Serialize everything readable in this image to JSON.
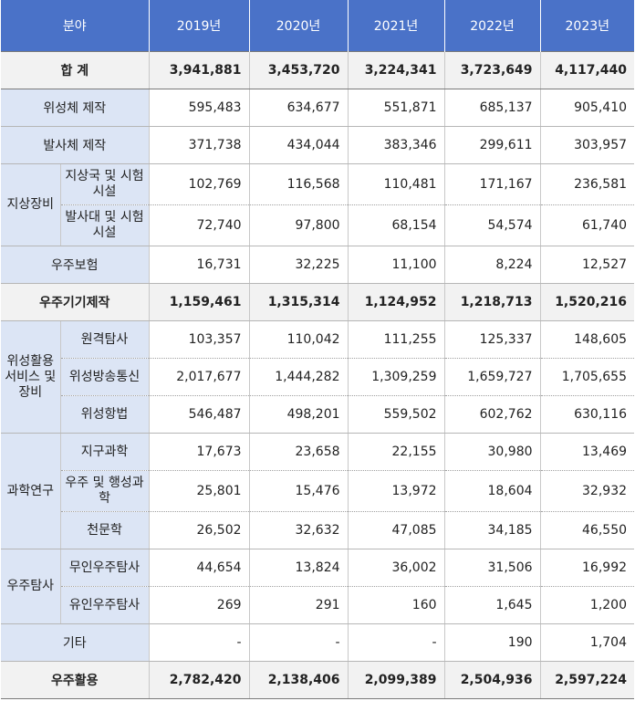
{
  "header": [
    "분야",
    "2019년",
    "2020년",
    "2021년",
    "2022년",
    "2023년"
  ],
  "rows": {
    "total": {
      "label": "합 계",
      "values": [
        "3,941,881",
        "3,453,720",
        "3,224,341",
        "3,723,649",
        "4,117,440"
      ]
    },
    "satellite": {
      "label": "위성체 제작",
      "values": [
        "595,483",
        "634,677",
        "551,871",
        "685,137",
        "905,410"
      ]
    },
    "launcher": {
      "label": "발사체 제작",
      "values": [
        "371,738",
        "434,044",
        "383,346",
        "299,611",
        "303,957"
      ]
    },
    "ground_group": "지상장비",
    "ground_station": {
      "label": "지상국 및 시험시설",
      "values": [
        "102,769",
        "116,568",
        "110,481",
        "171,167",
        "236,581"
      ]
    },
    "launch_pad": {
      "label": "발사대 및 시험시설",
      "values": [
        "72,740",
        "97,800",
        "68,154",
        "54,574",
        "61,740"
      ]
    },
    "insurance": {
      "label": "우주보험",
      "values": [
        "16,731",
        "32,225",
        "11,100",
        "8,224",
        "12,527"
      ]
    },
    "equipment_total": {
      "label": "우주기기제작",
      "values": [
        "1,159,461",
        "1,315,314",
        "1,124,952",
        "1,218,713",
        "1,520,216"
      ]
    },
    "service_group": "위성활용 서비스 및 장비",
    "remote_sensing": {
      "label": "원격탐사",
      "values": [
        "103,357",
        "110,042",
        "111,255",
        "125,337",
        "148,605"
      ]
    },
    "broadcast": {
      "label": "위성방송통신",
      "values": [
        "2,017,677",
        "1,444,282",
        "1,309,259",
        "1,659,727",
        "1,705,655"
      ]
    },
    "navigation": {
      "label": "위성항법",
      "values": [
        "546,487",
        "498,201",
        "559,502",
        "602,762",
        "630,116"
      ]
    },
    "science_group": "과학연구",
    "earth_science": {
      "label": "지구과학",
      "values": [
        "17,673",
        "23,658",
        "22,155",
        "30,980",
        "13,469"
      ]
    },
    "planetary": {
      "label": "우주 및 행성과학",
      "values": [
        "25,801",
        "15,476",
        "13,972",
        "18,604",
        "32,932"
      ]
    },
    "astronomy": {
      "label": "천문학",
      "values": [
        "26,502",
        "32,632",
        "47,085",
        "34,185",
        "46,550"
      ]
    },
    "explore_group": "우주탐사",
    "unmanned": {
      "label": "무인우주탐사",
      "values": [
        "44,654",
        "13,824",
        "36,002",
        "31,506",
        "16,992"
      ]
    },
    "manned": {
      "label": "유인우주탐사",
      "values": [
        "269",
        "291",
        "160",
        "1,645",
        "1,200"
      ]
    },
    "etc": {
      "label": "기타",
      "values": [
        "-",
        "-",
        "-",
        "190",
        "1,704"
      ]
    },
    "utilization_total": {
      "label": "우주활용",
      "values": [
        "2,782,420",
        "2,138,406",
        "2,099,389",
        "2,504,936",
        "2,597,224"
      ]
    }
  }
}
